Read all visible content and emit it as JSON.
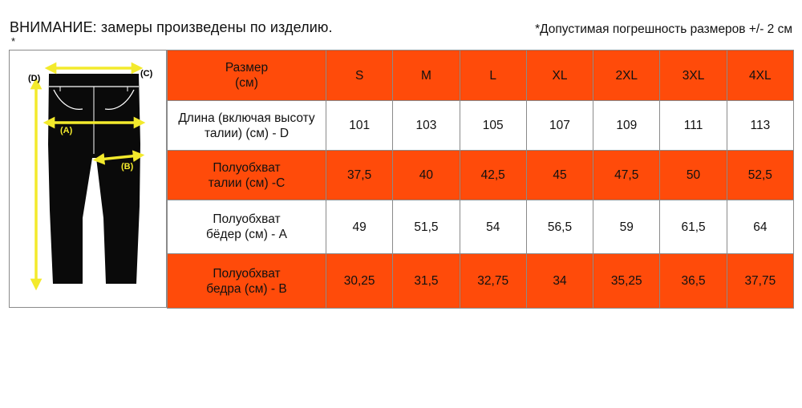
{
  "header": {
    "warning": "ВНИМАНИЕ: замеры произведены по изделию.",
    "asterisk": "*",
    "tolerance": "*Допустимая погрешность размеров +/- 2 см"
  },
  "figure": {
    "icon": "trousers-diagram-icon",
    "labels": {
      "d": "(D)",
      "c": "(C)",
      "a": "(A)",
      "b": "(B)"
    },
    "colors": {
      "garment": "#0a0a0a",
      "arrows": "#f3ea2c",
      "lines": "#ffffff"
    }
  },
  "table": {
    "header_label_line1": "Размер",
    "header_label_line2": "(см)",
    "sizes": [
      "S",
      "M",
      "L",
      "XL",
      "2XL",
      "3XL",
      "4XL"
    ],
    "rows": [
      {
        "label_line1": "Длина (включая высоту",
        "label_line2": "талии) (см) - D",
        "values": [
          "101",
          "103",
          "105",
          "107",
          "109",
          "111",
          "113"
        ]
      },
      {
        "label_line1": "Полуобхват",
        "label_line2": "талии (см) -C",
        "values": [
          "37,5",
          "40",
          "42,5",
          "45",
          "47,5",
          "50",
          "52,5"
        ]
      },
      {
        "label_line1": "Полуобхват",
        "label_line2": "бёдер (см) - A",
        "values": [
          "49",
          "51,5",
          "54",
          "56,5",
          "59",
          "61,5",
          "64"
        ]
      },
      {
        "label_line1": "Полуобхват",
        "label_line2": "бедра (см) - B",
        "values": [
          "30,25",
          "31,5",
          "32,75",
          "34",
          "35,25",
          "36,5",
          "37,75"
        ]
      }
    ],
    "colors": {
      "accent": "#ff4b0a",
      "plain": "#ffffff",
      "border": "#8a8a8a"
    }
  }
}
